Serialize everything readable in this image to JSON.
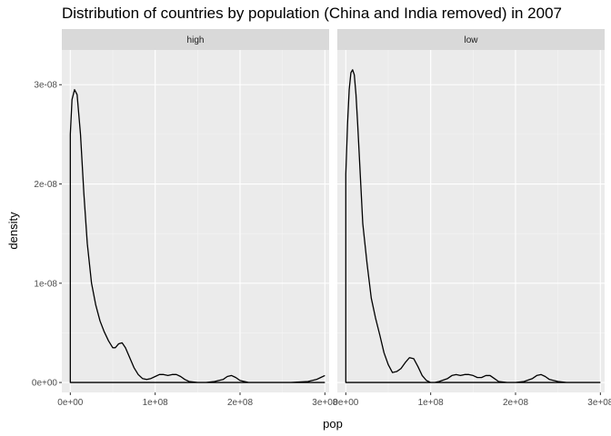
{
  "chart_data": {
    "type": "line",
    "title": "Distribution of countries by population (China and India removed) in 2007",
    "xlabel": "pop",
    "ylabel": "density",
    "xlim": [
      -10000000.0,
      305000000.0
    ],
    "ylim": [
      -1e-09,
      3.35e-08
    ],
    "x_ticks": [
      0,
      100000000.0,
      200000000.0,
      300000000.0
    ],
    "x_tick_labels": [
      "0e+00",
      "1e+08",
      "2e+08",
      "3e+08"
    ],
    "y_ticks": [
      0,
      1e-08,
      2e-08,
      3e-08
    ],
    "y_tick_labels": [
      "0e+00",
      "1e-08",
      "2e-08",
      "3e-08"
    ],
    "grid": true,
    "panels": [
      {
        "label": "high",
        "x": [
          0,
          2000000.0,
          5000000.0,
          8000000.0,
          12000000.0,
          16000000.0,
          20000000.0,
          25000000.0,
          30000000.0,
          35000000.0,
          40000000.0,
          45000000.0,
          50000000.0,
          53000000.0,
          57000000.0,
          61000000.0,
          65000000.0,
          70000000.0,
          75000000.0,
          80000000.0,
          85000000.0,
          90000000.0,
          95000000.0,
          100000000.0,
          105000000.0,
          110000000.0,
          115000000.0,
          120000000.0,
          125000000.0,
          130000000.0,
          135000000.0,
          140000000.0,
          150000000.0,
          160000000.0,
          170000000.0,
          180000000.0,
          185000000.0,
          190000000.0,
          195000000.0,
          200000000.0,
          205000000.0,
          210000000.0,
          220000000.0,
          240000000.0,
          260000000.0,
          280000000.0,
          290000000.0,
          295000000.0,
          300000000.0
        ],
        "y": [
          2.5e-08,
          2.85e-08,
          2.95e-08,
          2.9e-08,
          2.5e-08,
          1.9e-08,
          1.4e-08,
          1e-08,
          7.8e-09,
          6.2e-09,
          5.1e-09,
          4.2e-09,
          3.5e-09,
          3.5e-09,
          3.9e-09,
          4e-09,
          3.5e-09,
          2.5e-09,
          1.5e-09,
          8e-10,
          4e-10,
          3e-10,
          4e-10,
          6e-10,
          8e-10,
          8e-10,
          7e-10,
          8e-10,
          8e-10,
          6e-10,
          3e-10,
          1e-10,
          0,
          0,
          1e-10,
          3e-10,
          6e-10,
          7e-10,
          5e-10,
          2e-10,
          1e-10,
          0,
          0,
          0,
          0,
          1e-10,
          3e-10,
          5e-10,
          7e-10
        ]
      },
      {
        "label": "low",
        "x": [
          0,
          2000000.0,
          4000000.0,
          6000000.0,
          8000000.0,
          10000000.0,
          12000000.0,
          14000000.0,
          17000000.0,
          20000000.0,
          25000000.0,
          30000000.0,
          35000000.0,
          40000000.0,
          45000000.0,
          50000000.0,
          55000000.0,
          60000000.0,
          65000000.0,
          70000000.0,
          75000000.0,
          80000000.0,
          85000000.0,
          90000000.0,
          95000000.0,
          100000000.0,
          105000000.0,
          110000000.0,
          120000000.0,
          125000000.0,
          130000000.0,
          135000000.0,
          140000000.0,
          145000000.0,
          150000000.0,
          155000000.0,
          160000000.0,
          165000000.0,
          170000000.0,
          175000000.0,
          180000000.0,
          190000000.0,
          200000000.0,
          210000000.0,
          220000000.0,
          225000000.0,
          230000000.0,
          235000000.0,
          240000000.0,
          250000000.0,
          260000000.0,
          280000000.0,
          300000000.0
        ],
        "y": [
          2.1e-08,
          2.6e-08,
          2.95e-08,
          3.12e-08,
          3.15e-08,
          3.1e-08,
          2.9e-08,
          2.6e-08,
          2.1e-08,
          1.6e-08,
          1.2e-08,
          8.5e-09,
          6.5e-09,
          4.8e-09,
          3e-09,
          1.8e-09,
          1e-09,
          1.1e-09,
          1.4e-09,
          2e-09,
          2.5e-09,
          2.4e-09,
          1.6e-09,
          7e-10,
          2e-10,
          0,
          0,
          1e-10,
          4e-10,
          7e-10,
          8e-10,
          7e-10,
          8e-10,
          8e-10,
          7e-10,
          5e-10,
          5e-10,
          7e-10,
          7e-10,
          4e-10,
          1e-10,
          0,
          0,
          1e-10,
          4e-10,
          7e-10,
          8e-10,
          6e-10,
          3e-10,
          1e-10,
          0,
          0,
          0
        ]
      }
    ]
  }
}
